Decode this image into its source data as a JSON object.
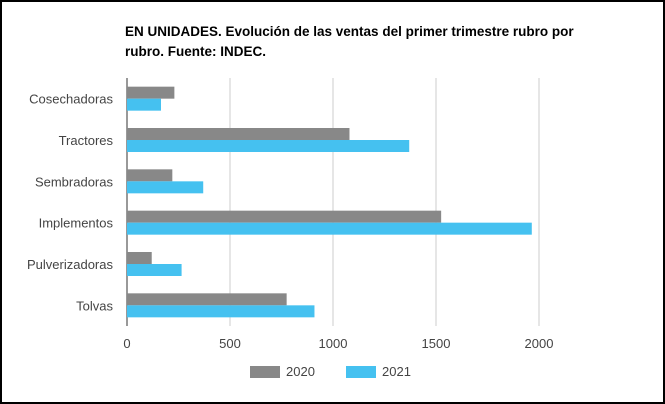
{
  "chart_data": {
    "type": "bar",
    "orientation": "horizontal",
    "title": "EN UNIDADES. Evolución de las ventas del primer trimestre rubro por rubro. Fuente: INDEC.",
    "categories": [
      "Cosechadoras",
      "Tractores",
      "Sembradoras",
      "Implementos",
      "Pulverizadoras",
      "Tolvas"
    ],
    "series": [
      {
        "name": "2020",
        "color": "#888888",
        "values": [
          230,
          1080,
          220,
          1525,
          120,
          775
        ]
      },
      {
        "name": "2021",
        "color": "#45c1f0",
        "values": [
          165,
          1370,
          370,
          1965,
          265,
          910
        ]
      }
    ],
    "xlim": [
      0,
      2000
    ],
    "xticks": [
      "0",
      "500",
      "1000",
      "1500",
      "2000"
    ],
    "grid": true,
    "legend_position": "bottom"
  }
}
